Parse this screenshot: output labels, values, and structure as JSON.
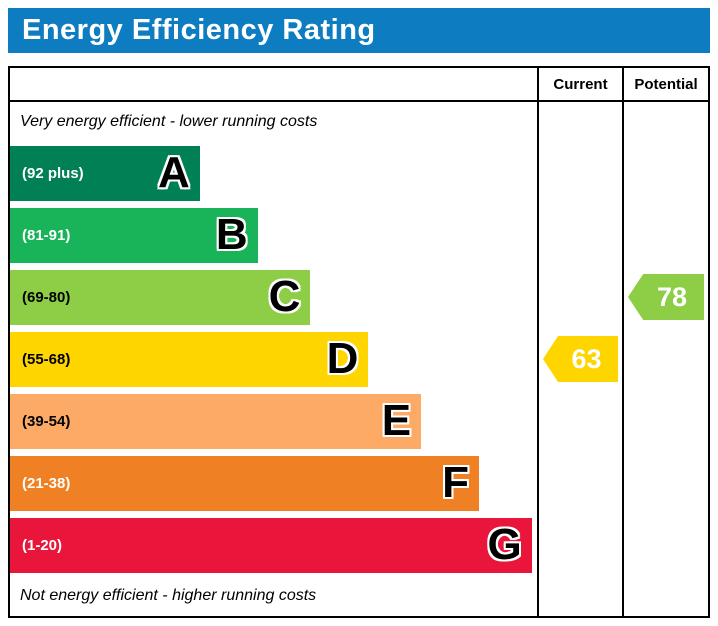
{
  "title": "Energy Efficiency Rating",
  "columns": {
    "current": "Current",
    "potential": "Potential"
  },
  "notes": {
    "top": "Very energy efficient - lower running costs",
    "bottom": "Not energy efficient - higher running costs"
  },
  "accent": {
    "header_bg": "#0d7cc0"
  },
  "chart_data": {
    "type": "bar",
    "title": "Energy Efficiency Rating",
    "bands": [
      {
        "letter": "A",
        "range": "(92 plus)",
        "color": "#008054",
        "text_color": "#ffffff",
        "width_pct": 36
      },
      {
        "letter": "B",
        "range": "(81-91)",
        "color": "#19b459",
        "text_color": "#ffffff",
        "width_pct": 47
      },
      {
        "letter": "C",
        "range": "(69-80)",
        "color": "#8dce46",
        "text_color": "#000000",
        "width_pct": 57
      },
      {
        "letter": "D",
        "range": "(55-68)",
        "color": "#ffd500",
        "text_color": "#000000",
        "width_pct": 68
      },
      {
        "letter": "E",
        "range": "(39-54)",
        "color": "#fcaa65",
        "text_color": "#000000",
        "width_pct": 78
      },
      {
        "letter": "F",
        "range": "(21-38)",
        "color": "#ef8023",
        "text_color": "#ffffff",
        "width_pct": 89
      },
      {
        "letter": "G",
        "range": "(1-20)",
        "color": "#e9153b",
        "text_color": "#ffffff",
        "width_pct": 99
      }
    ],
    "current": {
      "value": 63,
      "band": "D",
      "color": "#ffd500"
    },
    "potential": {
      "value": 78,
      "band": "C",
      "color": "#8dce46"
    }
  }
}
